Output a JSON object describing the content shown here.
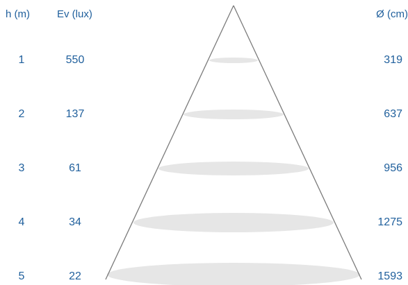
{
  "headers": {
    "height": "h (m)",
    "illuminance": "Ev (lux)",
    "diameter": "Ø (cm)"
  },
  "rows": [
    {
      "h": "1",
      "ev": "550",
      "d": "319"
    },
    {
      "h": "2",
      "ev": "137",
      "d": "637"
    },
    {
      "h": "3",
      "ev": "61",
      "d": "956"
    },
    {
      "h": "4",
      "ev": "34",
      "d": "1275"
    },
    {
      "h": "5",
      "ev": "22",
      "d": "1593"
    }
  ],
  "colors": {
    "text": "#1f5f9c",
    "cone_line": "#7a7a7a",
    "light_pool": "#e6e6e6"
  }
}
